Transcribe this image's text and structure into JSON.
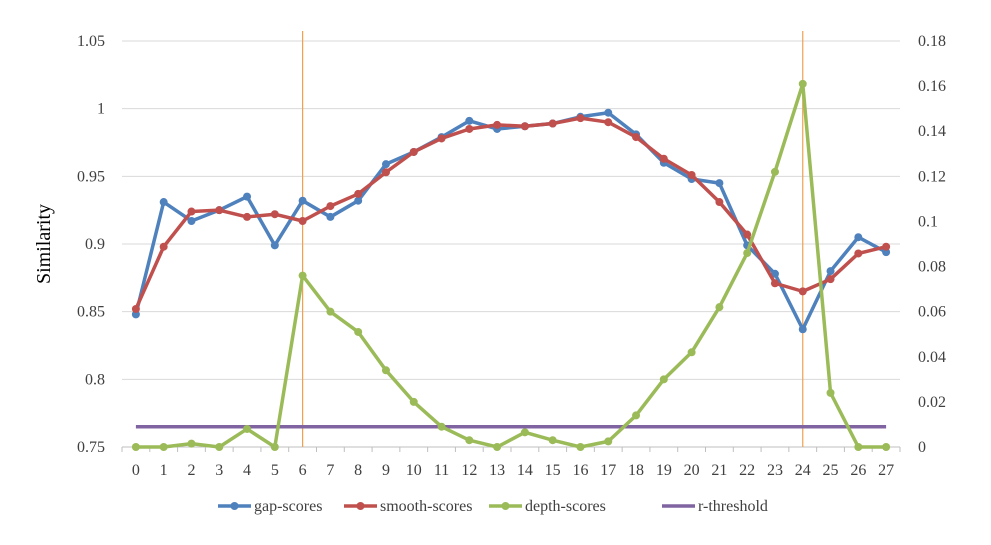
{
  "chart_data": {
    "type": "line",
    "title": "",
    "xlabel": "",
    "ylabel": "Similarity",
    "x": [
      0,
      1,
      2,
      3,
      4,
      5,
      6,
      7,
      8,
      9,
      10,
      11,
      12,
      13,
      14,
      15,
      16,
      17,
      18,
      19,
      20,
      21,
      22,
      23,
      24,
      25,
      26,
      27
    ],
    "ylim": [
      0.75,
      1.05
    ],
    "yticks": [
      "1.05",
      "1",
      "0.95",
      "0.9",
      "0.85",
      "0.8",
      "0.75"
    ],
    "y2lim": [
      0,
      0.18
    ],
    "y2ticks": [
      "0.18",
      "0.16",
      "0.14",
      "0.12",
      "0.1",
      "0.08",
      "0.06",
      "0.04",
      "0.02",
      "0"
    ],
    "grid": true,
    "legend_position": "bottom",
    "vertical_markers": [
      6,
      24
    ],
    "colors": {
      "gap": "#4F81BD",
      "smooth": "#C0504D",
      "depth": "#9BBB59",
      "threshold": "#8064A2",
      "marker": "#F0A050",
      "grid": "#D9D9D9",
      "axis": "#BFBFBF"
    },
    "series": [
      {
        "name": "gap-scores",
        "axis": "left",
        "color": "#4F81BD",
        "values": [
          0.848,
          0.931,
          0.917,
          0.925,
          0.935,
          0.899,
          0.932,
          0.92,
          0.932,
          0.959,
          0.968,
          0.979,
          0.991,
          0.985,
          0.987,
          0.989,
          0.994,
          0.997,
          0.981,
          0.96,
          0.948,
          0.945,
          0.899,
          0.878,
          0.837,
          0.88,
          0.905,
          0.894
        ]
      },
      {
        "name": "smooth-scores",
        "axis": "left",
        "color": "#C0504D",
        "values": [
          0.852,
          0.898,
          0.924,
          0.925,
          0.92,
          0.922,
          0.917,
          0.928,
          0.937,
          0.953,
          0.968,
          0.978,
          0.985,
          0.988,
          0.987,
          0.989,
          0.993,
          0.99,
          0.979,
          0.963,
          0.951,
          0.931,
          0.907,
          0.871,
          0.865,
          0.874,
          0.893,
          0.898
        ]
      },
      {
        "name": "depth-scores",
        "axis": "right",
        "color": "#9BBB59",
        "values": [
          0.0,
          0.0,
          0.0015,
          0.0,
          0.008,
          0.0,
          0.076,
          0.06,
          0.051,
          0.034,
          0.02,
          0.009,
          0.003,
          0.0,
          0.0065,
          0.003,
          0.0,
          0.0025,
          0.014,
          0.03,
          0.042,
          0.062,
          0.086,
          0.122,
          0.161,
          0.024,
          0.0,
          0.0
        ]
      },
      {
        "name": "r-threshold",
        "axis": "right",
        "color": "#8064A2",
        "values": [
          0.009,
          0.009,
          0.009,
          0.009,
          0.009,
          0.009,
          0.009,
          0.009,
          0.009,
          0.009,
          0.009,
          0.009,
          0.009,
          0.009,
          0.009,
          0.009,
          0.009,
          0.009,
          0.009,
          0.009,
          0.009,
          0.009,
          0.009,
          0.009,
          0.009,
          0.009,
          0.009,
          0.009
        ]
      }
    ]
  }
}
